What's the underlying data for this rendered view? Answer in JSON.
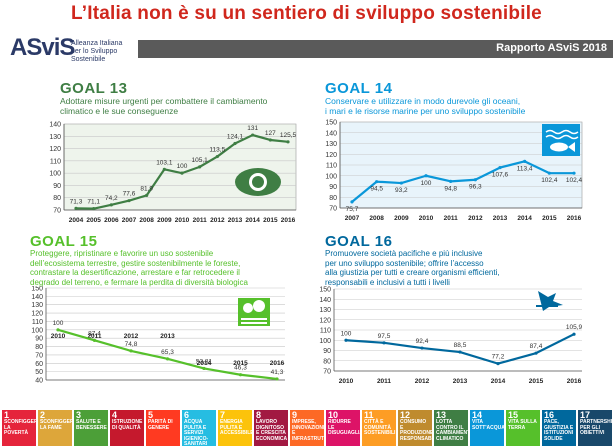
{
  "title": "L’Italia non è su un sentiero di sviluppo sostenibile",
  "header": {
    "logo_text": "ASviS",
    "logo_sub": "Alleanza Italiana per lo Sviluppo Sostenibile",
    "report": "Rapporto ASviS 2018"
  },
  "colors": {
    "goal13": "#3f7e44",
    "goal14": "#0a97d9",
    "goal15": "#56c02b",
    "goal16": "#00689d",
    "title": "#d0271d"
  },
  "goals": {
    "g13": {
      "title": "GOAL 13",
      "desc": [
        "Adottare misure urgenti per combattere il cambiamento",
        "climatico e le sue conseguenze"
      ]
    },
    "g14": {
      "title": "GOAL 14",
      "desc": [
        "Conservare e utilizzare in modo durevole gli oceani,",
        "i mari e le risorse marine per uno sviluppo sostenibile"
      ]
    },
    "g15": {
      "title": "GOAL 15",
      "desc": [
        "Proteggere, ripristinare e favorire un uso sostenibile",
        "dell’ecosistema terrestre, gestire sostenibilmente le foreste,",
        "contrastare la desertificazione, arrestare e far retrocedere il",
        "degrado del terreno, e fermare la perdita di diversità biologica"
      ]
    },
    "g16": {
      "title": "GOAL 16",
      "desc": [
        "Promuovere società pacifiche e più inclusive",
        "per uno sviluppo sostenibile; offrire l’accesso",
        "alla giustizia per tutti e creare organismi efficienti,",
        "responsabili e inclusivi a tutti i livelli"
      ]
    }
  },
  "chart_data": [
    {
      "type": "line",
      "id": "g13",
      "x": [
        "2004",
        "2005",
        "2006",
        "2007",
        "2008",
        "2009",
        "2010",
        "2011",
        "2012",
        "2013",
        "2014",
        "2015",
        "2016"
      ],
      "values": [
        71.3,
        71.1,
        74.2,
        77.6,
        81.9,
        103.1,
        100,
        105.1,
        113.5,
        124.1,
        131,
        127,
        125.5
      ],
      "labels": [
        "71,3",
        "71,1",
        "74,2",
        "77,6",
        "81,9",
        "103,1",
        "100",
        "105,1",
        "113,5",
        "124,1",
        "131",
        "127",
        "125,5"
      ],
      "yticks": [
        70,
        80,
        90,
        100,
        110,
        120,
        130,
        140
      ],
      "ylim": [
        70,
        140
      ]
    },
    {
      "type": "line",
      "id": "g14",
      "x": [
        "2007",
        "2008",
        "2009",
        "2010",
        "2011",
        "2012",
        "2013",
        "2014",
        "2015",
        "2016"
      ],
      "values": [
        75.7,
        94.5,
        93.2,
        100,
        94.8,
        96.3,
        107.6,
        113.4,
        102.4,
        102.4
      ],
      "labels": [
        "75,7",
        "94,5",
        "93,2",
        "100",
        "94,8",
        "96,3",
        "107,6",
        "113,4",
        "102,4",
        "102,4"
      ],
      "yticks": [
        70,
        80,
        90,
        100,
        110,
        120,
        130,
        140,
        150
      ],
      "ylim": [
        70,
        150
      ]
    },
    {
      "type": "line",
      "id": "g15",
      "x": [
        "2010",
        "2011",
        "2012",
        "2013",
        "2014",
        "2015",
        "2016"
      ],
      "values": [
        100,
        87.4,
        74.8,
        65.3,
        53.81,
        46.3,
        41.3
      ],
      "labels": [
        "100",
        "87,4",
        "74,8",
        "65,3",
        "53,81",
        "46,3",
        "41,3"
      ],
      "yticks": [
        40,
        50,
        60,
        70,
        80,
        90,
        100,
        110,
        120,
        130,
        140,
        150
      ],
      "ylim": [
        40,
        150
      ]
    },
    {
      "type": "line",
      "id": "g16",
      "x": [
        "2010",
        "2011",
        "2012",
        "2013",
        "2014",
        "2015",
        "2016"
      ],
      "values": [
        100,
        97.5,
        92.4,
        88.5,
        77.2,
        87.4,
        105.9
      ],
      "labels": [
        "100",
        "97,5",
        "92,4",
        "88,5",
        "77,2",
        "87,4",
        "105,9"
      ],
      "yticks": [
        70,
        80,
        90,
        100,
        110,
        120,
        130,
        140,
        150
      ],
      "ylim": [
        70,
        150
      ]
    }
  ],
  "sdgs": [
    {
      "n": "1",
      "label": "SCONFIGGERE LA POVERTÀ",
      "color": "#e5243b"
    },
    {
      "n": "2",
      "label": "SCONFIGGERE LA FAME",
      "color": "#dda63a"
    },
    {
      "n": "3",
      "label": "SALUTE E BENESSERE",
      "color": "#4c9f38"
    },
    {
      "n": "4",
      "label": "ISTRUZIONE DI QUALITÀ",
      "color": "#c5192d"
    },
    {
      "n": "5",
      "label": "PARITÀ DI GENERE",
      "color": "#ff3a21"
    },
    {
      "n": "6",
      "label": "ACQUA PULITA E SERVIZI IGIENICO-SANITARI",
      "color": "#26bde2"
    },
    {
      "n": "7",
      "label": "ENERGIA PULITA E ACCESSIBILE",
      "color": "#fcc30b"
    },
    {
      "n": "8",
      "label": "LAVORO DIGNITOSO E CRESCITA ECONOMICA",
      "color": "#a21942"
    },
    {
      "n": "9",
      "label": "IMPRESE, INNOVAZIONE E INFRASTRUTTURE",
      "color": "#fd6925"
    },
    {
      "n": "10",
      "label": "RIDURRE LE DISUGUAGLIANZE",
      "color": "#dd1367"
    },
    {
      "n": "11",
      "label": "CITTÀ E COMUNITÀ SOSTENIBILI",
      "color": "#fd9d24"
    },
    {
      "n": "12",
      "label": "CONSUMO E PRODUZIONE RESPONSABILI",
      "color": "#bf8b2e"
    },
    {
      "n": "13",
      "label": "LOTTA CONTRO IL CAMBIAMENTO CLIMATICO",
      "color": "#3f7e44"
    },
    {
      "n": "14",
      "label": "VITA SOTT'ACQUA",
      "color": "#0a97d9"
    },
    {
      "n": "15",
      "label": "VITA SULLA TERRA",
      "color": "#56c02b"
    },
    {
      "n": "16",
      "label": "PACE, GIUSTIZIA E ISTITUZIONI SOLIDE",
      "color": "#00689d"
    },
    {
      "n": "17",
      "label": "PARTNERSHIP PER GLI OBIETTIVI",
      "color": "#19486a"
    }
  ]
}
